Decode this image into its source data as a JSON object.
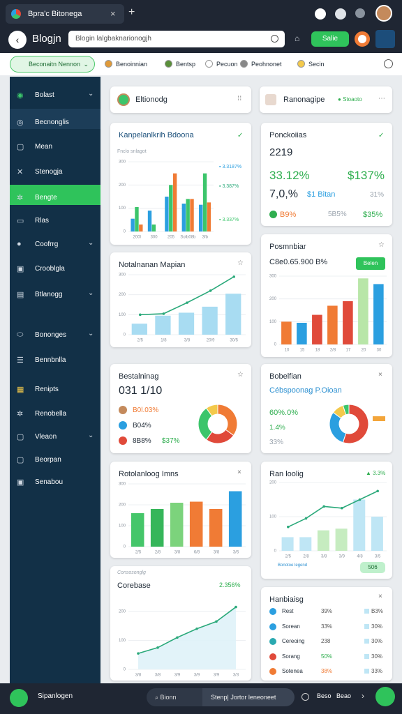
{
  "browser": {
    "tab_title": "Bpra'c Bitonega",
    "page_title": "Blogjn",
    "url": "Blogin lalgbaknarionogjh",
    "action_button": "Salie"
  },
  "toolbar": {
    "dropdown": "Beconaitn Nennon",
    "items": [
      "Benoinnian",
      "Bentsp",
      "Pecuon",
      "Peohnonet",
      "Secin"
    ]
  },
  "sidebar": {
    "items": [
      "Bolast",
      "Becnonglis",
      "Mean",
      "Stenogja",
      "Bengte",
      "Rlas",
      "Coofrrg",
      "Crooblgla",
      "Btlanogg",
      "Bononges",
      "Bennbnlla",
      "Renipts",
      "Renobella",
      "Vleaon",
      "Beorpan",
      "Senabou"
    ]
  },
  "cards": {
    "profile": {
      "title": "Eltionodg"
    },
    "overview": {
      "title": "Kanpelanlkrih Bdoona",
      "subtitle": "Fnclo snlagot",
      "legend": [
        "3.3187%",
        "3.387%",
        "3.337%"
      ],
      "chart": {
        "type": "bar",
        "categories": [
          "200l",
          "300",
          "205",
          "Solb08b",
          "3fb"
        ],
        "ylim": [
          0,
          300
        ],
        "yticks": [
          0,
          100,
          200,
          300
        ],
        "series": [
          {
            "color": "#2b9fe0",
            "values": [
              55,
              90,
              150,
              120,
              115
            ]
          },
          {
            "color": "#3cc56b",
            "values": [
              105,
              30,
              200,
              140,
              250
            ]
          },
          {
            "color": "#f07b35",
            "values": [
              30,
              0,
              250,
              140,
              125
            ]
          }
        ]
      }
    },
    "mapping": {
      "title": "Notalnanan Mapian",
      "chart": {
        "type": "bar",
        "categories": [
          "2/5",
          "1/8",
          "3/8",
          "20/9",
          "30/5"
        ],
        "ylim": [
          0,
          300
        ],
        "yticks": [
          0,
          100,
          200,
          300
        ],
        "series": [
          {
            "color": "#a8dcf2",
            "values": [
              55,
              95,
              110,
              140,
              205
            ]
          },
          {
            "kind": "line",
            "color": "#2aa97a",
            "values": [
              100,
              105,
              160,
              220,
              290
            ]
          }
        ]
      }
    },
    "balance": {
      "title": "Bestalninag",
      "value": "031 1/10",
      "rows": [
        "B0l.03%",
        "B04%",
        "8B8%"
      ],
      "extra": "$37%",
      "chart": {
        "type": "donut",
        "values": [
          35,
          25,
          30,
          10
        ],
        "colors": [
          "#f07b35",
          "#e04a3a",
          "#3cc56b",
          "#f3c94b"
        ]
      }
    },
    "items": {
      "title": "Rotolanloog Imns",
      "chart": {
        "type": "bar",
        "categories": [
          "2/5",
          "2/8",
          "3/8",
          "6/8",
          "3/8",
          "3/6"
        ],
        "ylim": [
          0,
          300
        ],
        "yticks": [
          0,
          100,
          200,
          300
        ],
        "series": [
          {
            "values": [
              160,
              180,
              210,
              215,
              180,
              265
            ],
            "colors": [
              "#45c66a",
              "#36b65a",
              "#7cd37c",
              "#f07b35",
              "#f07b35",
              "#2b9fe0"
            ]
          }
        ]
      }
    },
    "compare": {
      "label": "Consosonglg",
      "title": "Corebase",
      "change": "2.356%",
      "chart": {
        "type": "area",
        "categories": [
          "3/8",
          "3/8",
          "3/9",
          "3/9",
          "3/9",
          "3/3"
        ],
        "ylim": [
          0,
          250
        ],
        "yticks": [
          0,
          100,
          200
        ],
        "series": [
          {
            "color": "#2aa97a",
            "values": [
              55,
              75,
              110,
              140,
              165,
              215
            ]
          }
        ]
      }
    },
    "report": {
      "title": "Ranonagipe",
      "status": "Stoaoto"
    },
    "stats": {
      "title": "Ponckoiias",
      "value": "2219",
      "metrics": [
        "33.12%",
        "$137%",
        "7,0,%",
        "$1 Bitan",
        "31%",
        "B9%",
        "5B5%",
        "$35%"
      ]
    },
    "performance": {
      "title": "Posmnbiar",
      "value": "C8e0.65.900 B%",
      "button": "Belen",
      "chart": {
        "type": "bar",
        "categories": [
          "10",
          "15",
          "18",
          "2/8",
          "17",
          "20",
          "30"
        ],
        "ylim": [
          0,
          300
        ],
        "yticks": [
          0,
          100,
          200,
          300
        ],
        "series": [
          {
            "values": [
              100,
              95,
              130,
              170,
              190,
              290,
              265
            ],
            "colors": [
              "#f07b35",
              "#2b9fe0",
              "#e04a3a",
              "#f07b35",
              "#e04a3a",
              "#b8e6a8",
              "#2b9fe0"
            ]
          }
        ]
      }
    },
    "breakdown": {
      "title": "Bobelfian",
      "subtitle": "Cébspoonag P.Oioan",
      "metrics": [
        "60%.0%",
        "1.4%",
        "33%"
      ],
      "chart": {
        "type": "donut",
        "values": [
          55,
          30,
          10,
          5
        ],
        "colors": [
          "#e04a3a",
          "#2b9fe0",
          "#f3c94b",
          "#3cc56b"
        ]
      }
    },
    "trend": {
      "title": "Ran loolig",
      "change": "3.3%",
      "legend": "Bonotoe legend",
      "badge": "506",
      "chart": {
        "type": "bar",
        "categories": [
          "2/5",
          "2/8",
          "3/8",
          "3/9",
          "4/8",
          "3/5"
        ],
        "ylim": [
          0,
          200
        ],
        "yticks": [
          0,
          100,
          200
        ],
        "series": [
          {
            "values": [
              40,
              40,
              60,
              65,
              150,
              100
            ],
            "colors": [
              "#bfe6f5",
              "#bfe6f5",
              "#c6ecc0",
              "#c6ecc0",
              "#bfe6f5",
              "#bfe6f5"
            ]
          },
          {
            "kind": "line",
            "color": "#2aa97a",
            "values": [
              70,
              95,
              130,
              125,
              150,
              175
            ]
          }
        ]
      }
    },
    "ranking": {
      "title": "Hanbiaisg",
      "rows": [
        [
          "Rest",
          "39%",
          "B3%"
        ],
        [
          "Sorean",
          "33%",
          "30%"
        ],
        [
          "Cereoing",
          "238",
          "30%"
        ],
        [
          "Sorang",
          "50%",
          "30%"
        ],
        [
          "Sotenea",
          "38%",
          "33%"
        ]
      ]
    }
  },
  "bottom_bar": {
    "label": "Sipanlogen",
    "search": "Bionn",
    "input": "Stenp| Jortor leneoneet",
    "items": [
      "Beso",
      "Beao"
    ]
  }
}
